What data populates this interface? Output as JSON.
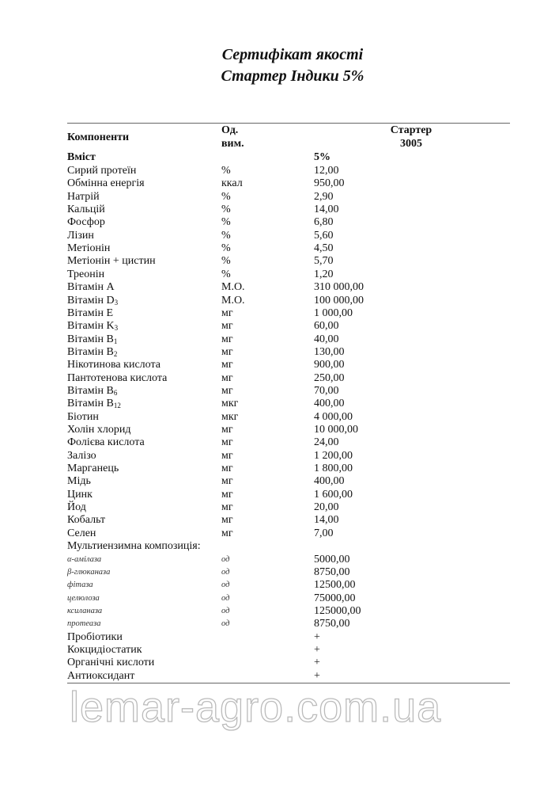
{
  "title": {
    "line1": "Сертифікат якості",
    "line2": "Стартер Індики 5%"
  },
  "header": {
    "components": "Компоненти",
    "unit_line1": "Од.",
    "unit_line2": "вим.",
    "product_line1": "Стартер",
    "product_line2": "3005",
    "content": "Вміст",
    "percent": "5%"
  },
  "rows": [
    {
      "name": "Сирий протеїн",
      "unit": "%",
      "value": "12,00"
    },
    {
      "name": "Обмінна енергія",
      "unit": "ккал",
      "value": "950,00"
    },
    {
      "name": "Натрій",
      "unit": "%",
      "value": "2,90"
    },
    {
      "name": "Кальцій",
      "unit": "%",
      "value": "14,00"
    },
    {
      "name": "Фосфор",
      "unit": "%",
      "value": "6,80"
    },
    {
      "name": "Лізин",
      "unit": "%",
      "value": "5,60"
    },
    {
      "name": "Метіонін",
      "unit": "%",
      "value": "4,50"
    },
    {
      "name": "Метіонін + цистин",
      "unit": "%",
      "value": "5,70"
    },
    {
      "name": "Треонін",
      "unit": "%",
      "value": "1,20"
    },
    {
      "name": "Вітамін А",
      "unit": "М.О.",
      "value": "310 000,00"
    },
    {
      "name": "Вітамін D",
      "sub": "3",
      "unit": "М.О.",
      "value": "100 000,00"
    },
    {
      "name": "Вітамін Е",
      "unit": "мг",
      "value": "1 000,00"
    },
    {
      "name": "Вітамін K",
      "sub": "3",
      "unit": "мг",
      "value": "60,00"
    },
    {
      "name": "Вітамін B",
      "sub": "1",
      "unit": "мг",
      "value": "40,00"
    },
    {
      "name": "Вітамін B",
      "sub": "2",
      "unit": "мг",
      "value": "130,00"
    },
    {
      "name": "Нікотинова кислота",
      "unit": "мг",
      "value": "900,00"
    },
    {
      "name": "Пантотенова кислота",
      "unit": "мг",
      "value": "250,00"
    },
    {
      "name": "Вітамін B",
      "sub": "6",
      "unit": "мг",
      "value": "70,00"
    },
    {
      "name": "Вітамін B",
      "sub": "12",
      "unit": "мкг",
      "value": "400,00"
    },
    {
      "name": "Біотин",
      "unit": "мкг",
      "value": "4 000,00"
    },
    {
      "name": "Холін хлорид",
      "unit": "мг",
      "value": "10 000,00"
    },
    {
      "name": "Фолієва кислота",
      "unit": "мг",
      "value": "24,00"
    },
    {
      "name": "Залізо",
      "unit": "мг",
      "value": "1 200,00"
    },
    {
      "name": "Марганець",
      "unit": "мг",
      "value": "1 800,00"
    },
    {
      "name": "Мідь",
      "unit": "мг",
      "value": "400,00"
    },
    {
      "name": "Цинк",
      "unit": "мг",
      "value": "1 600,00"
    },
    {
      "name": "Йод",
      "unit": "мг",
      "value": "20,00"
    },
    {
      "name": "Кобальт",
      "unit": "мг",
      "value": "14,00"
    },
    {
      "name": "Селен",
      "unit": "мг",
      "value": "7,00"
    },
    {
      "name": "Мультиензимна композиція:",
      "unit": "",
      "value": ""
    },
    {
      "name": "α-амілаза",
      "unit": "од",
      "value": "5000,00",
      "enzyme": true
    },
    {
      "name": "β-глюканаза",
      "unit": "од",
      "value": "8750,00",
      "enzyme": true
    },
    {
      "name": "фітаза",
      "unit": "од",
      "value": "12500,00",
      "enzyme": true
    },
    {
      "name": "целюлоза",
      "unit": "од",
      "value": "75000,00",
      "enzyme": true
    },
    {
      "name": "ксиланаза",
      "unit": "од",
      "value": "125000,00",
      "enzyme": true
    },
    {
      "name": "протеаза",
      "unit": "од",
      "value": "8750,00",
      "enzyme": true
    },
    {
      "name": "Пробіотики",
      "unit": "",
      "value": "+"
    },
    {
      "name": "Кокцидіостатик",
      "unit": "",
      "value": "+"
    },
    {
      "name": "Органічні кислоти",
      "unit": "",
      "value": "+"
    },
    {
      "name": "Антиоксидант",
      "unit": "",
      "value": "+"
    }
  ],
  "watermark": "lemar-agro.com.ua"
}
